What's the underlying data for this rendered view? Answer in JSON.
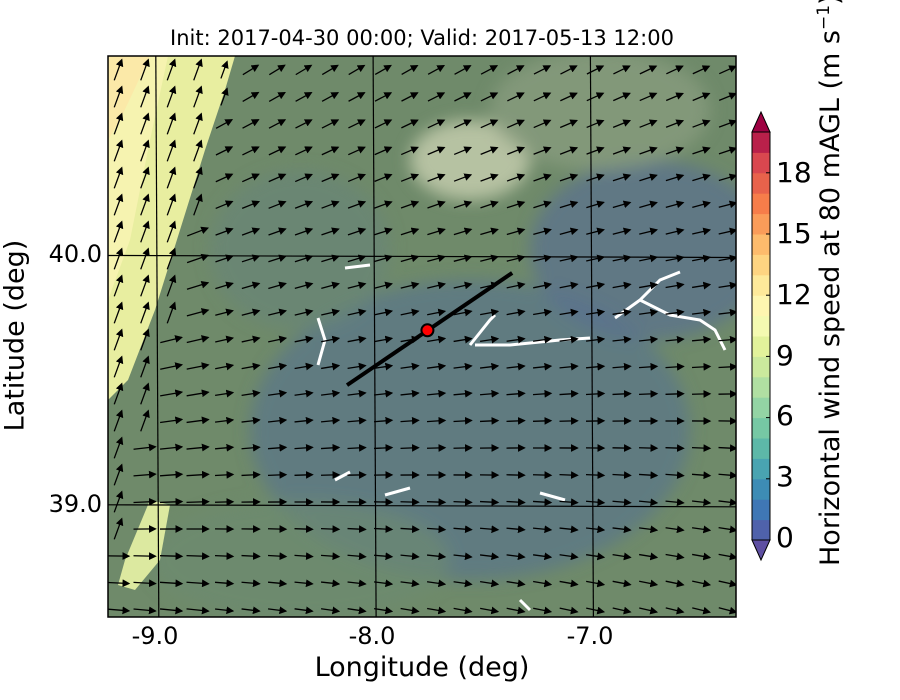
{
  "chart_data": {
    "type": "heatmap",
    "title": "Init: 2017-04-30 00:00; Valid: 2017-05-13 12:00",
    "xlabel": "Longitude (deg)",
    "ylabel": "Latitude (deg)",
    "xlim": [
      -9.22,
      -6.33
    ],
    "ylim": [
      38.55,
      40.8
    ],
    "xticks": [
      -9.0,
      -8.0,
      -7.0
    ],
    "xtick_labels": [
      "-9.0",
      "-8.0",
      "-7.0"
    ],
    "yticks": [
      39.0,
      40.0
    ],
    "ytick_labels": [
      "39.0",
      "40.0"
    ],
    "grid": true,
    "colorbar": {
      "label": "Horizontal wind speed at 80 mAGL (m s",
      "label_unit_exp": "−1",
      "label_close": ")",
      "min": 0,
      "max": 20,
      "step": 1,
      "extend": "both",
      "ticks": [
        0,
        3,
        6,
        9,
        12,
        15,
        18
      ],
      "tick_labels": [
        "0",
        "3",
        "6",
        "9",
        "12",
        "15",
        "18"
      ],
      "colors": [
        "#5e4fa2",
        "#4f62ab",
        "#3f77b5",
        "#3d8cb5",
        "#49a4b1",
        "#5db8a8",
        "#76c8a4",
        "#93d4a4",
        "#b0dfa2",
        "#cbe99d",
        "#e2f29b",
        "#f4fab1",
        "#fef6b0",
        "#fee99a",
        "#fed481",
        "#fdbb6c",
        "#fa9c59",
        "#f67d4a",
        "#e8624b",
        "#d9474f",
        "#b9204a",
        "#9e0142"
      ]
    },
    "marker": {
      "lon": -7.75,
      "lat": 39.7,
      "color": "#ff0000"
    },
    "transect": {
      "start": [
        -8.12,
        39.48
      ],
      "end": [
        -7.36,
        39.93
      ]
    },
    "wind_vectors": "quiver field, predominantly from SW (pointing NE), steeper NNE near western coast"
  }
}
